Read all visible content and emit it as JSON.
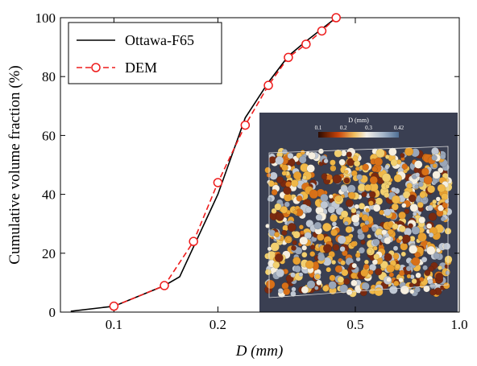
{
  "chart_data": {
    "type": "line",
    "x_label": "D (mm)",
    "y_label": "Cumulative volume fraction (%)",
    "log_x": true,
    "xlim": [
      0.07,
      1.0
    ],
    "ylim": [
      0,
      100
    ],
    "xticks": [
      0.1,
      0.2,
      0.5,
      {
        "value": 1,
        "label": "1.0"
      }
    ],
    "yticks": [
      0,
      20,
      40,
      60,
      80,
      100
    ],
    "legend": "upper left",
    "series": [
      {
        "name": "Ottawa-F65",
        "color": "#000000",
        "style": "solid",
        "marker": "none",
        "x": [
          0.075,
          0.1,
          0.14,
          0.155,
          0.2,
          0.24,
          0.28,
          0.32,
          0.36,
          0.44
        ],
        "values": [
          0.3,
          2,
          9,
          12,
          40,
          66,
          78,
          87,
          92,
          100
        ]
      },
      {
        "name": "DEM",
        "color": "#ee1c1c",
        "style": "dashed",
        "marker": "circle",
        "x": [
          0.1,
          0.14,
          0.17,
          0.2,
          0.24,
          0.28,
          0.32,
          0.36,
          0.4,
          0.44
        ],
        "values": [
          2,
          9,
          24,
          44,
          63.5,
          77,
          86.5,
          91,
          95.5,
          100
        ]
      }
    ],
    "inset": {
      "colorbar_label": "D (mm)",
      "colorbar_ticks": [
        0.1,
        0.2,
        0.3,
        0.42
      ]
    }
  }
}
